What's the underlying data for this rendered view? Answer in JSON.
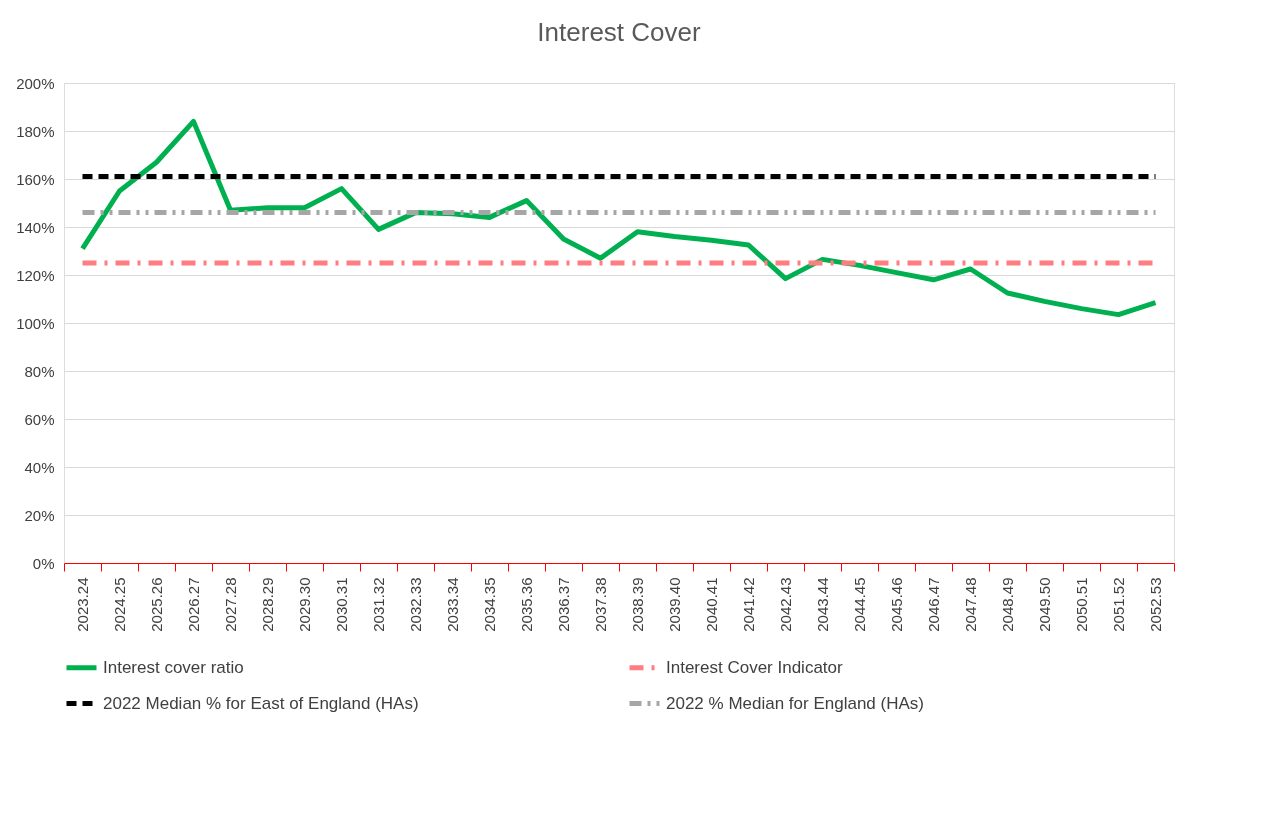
{
  "chart_data": {
    "type": "line",
    "title": "Interest Cover",
    "categories": [
      "2023.24",
      "2024.25",
      "2025.26",
      "2026.27",
      "2027.28",
      "2028.29",
      "2029.30",
      "2030.31",
      "2031.32",
      "2032.33",
      "2033.34",
      "2034.35",
      "2035.36",
      "2036.37",
      "2037.38",
      "2038.39",
      "2039.40",
      "2040.41",
      "2041.42",
      "2042.43",
      "2043.44",
      "2044.45",
      "2045.46",
      "2046.47",
      "2047.48",
      "2048.49",
      "2049.50",
      "2050.51",
      "2051.52",
      "2052.53"
    ],
    "series": [
      {
        "name": "Interest cover ratio",
        "color": "#00b050",
        "line_style": "solid",
        "values": [
          131,
          155,
          167,
          184,
          147,
          148,
          148,
          156,
          139,
          146,
          145.5,
          144,
          151,
          135,
          127,
          138,
          136,
          134.5,
          132.5,
          118.5,
          126.5,
          124,
          121,
          118,
          122.5,
          112.5,
          109,
          106,
          103.5,
          108.5
        ]
      },
      {
        "name": "Interest Cover Indicator",
        "color": "#ff7c80",
        "line_style": "dashdot",
        "values": [
          125,
          125,
          125,
          125,
          125,
          125,
          125,
          125,
          125,
          125,
          125,
          125,
          125,
          125,
          125,
          125,
          125,
          125,
          125,
          125,
          125,
          125,
          125,
          125,
          125,
          125,
          125,
          125,
          125,
          125
        ]
      },
      {
        "name": "2022 Median % for East of England (HAs)",
        "color": "#000000",
        "line_style": "dashed",
        "values": [
          161,
          161,
          161,
          161,
          161,
          161,
          161,
          161,
          161,
          161,
          161,
          161,
          161,
          161,
          161,
          161,
          161,
          161,
          161,
          161,
          161,
          161,
          161,
          161,
          161,
          161,
          161,
          161,
          161,
          161
        ]
      },
      {
        "name": "2022 % Median for England (HAs)",
        "color": "#a6a6a6",
        "line_style": "dashdotdot",
        "values": [
          146,
          146,
          146,
          146,
          146,
          146,
          146,
          146,
          146,
          146,
          146,
          146,
          146,
          146,
          146,
          146,
          146,
          146,
          146,
          146,
          146,
          146,
          146,
          146,
          146,
          146,
          146,
          146,
          146,
          146
        ]
      }
    ],
    "ylim": [
      0,
      200
    ],
    "yticks": [
      {
        "value": 0,
        "label": "0%"
      },
      {
        "value": 20,
        "label": "20%"
      },
      {
        "value": 40,
        "label": "40%"
      },
      {
        "value": 60,
        "label": "60%"
      },
      {
        "value": 80,
        "label": "80%"
      },
      {
        "value": 100,
        "label": "100%"
      },
      {
        "value": 120,
        "label": "120%"
      },
      {
        "value": 140,
        "label": "140%"
      },
      {
        "value": 160,
        "label": "160%"
      },
      {
        "value": 180,
        "label": "180%"
      },
      {
        "value": 200,
        "label": "200%"
      }
    ],
    "grid": "y",
    "legend": "bottom",
    "marker": "none"
  }
}
